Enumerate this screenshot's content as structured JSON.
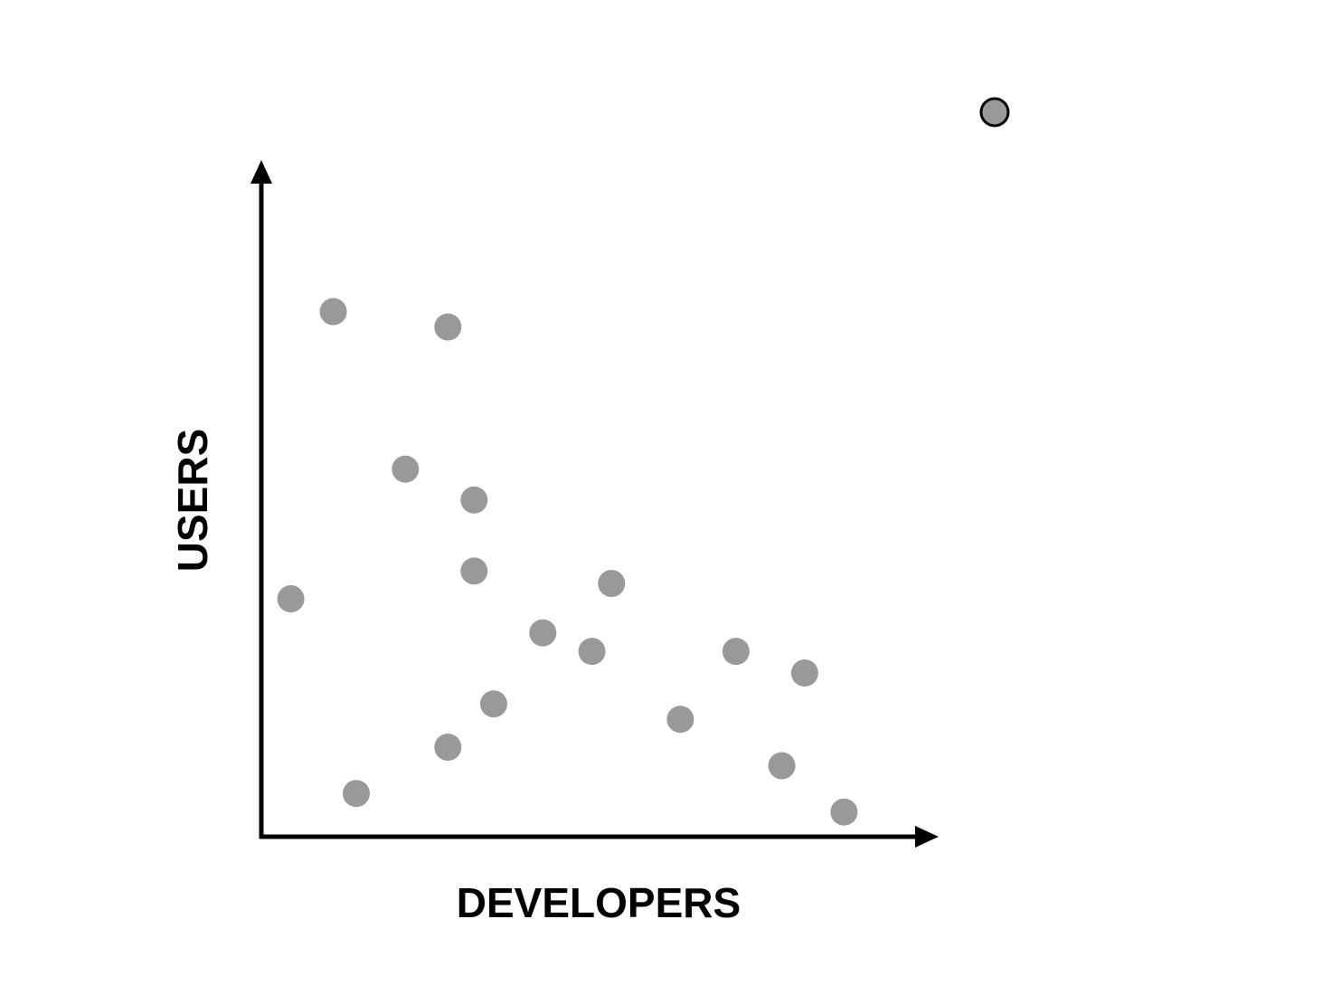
{
  "chart_data": {
    "type": "scatter",
    "title": "",
    "xlabel": "DEVELOPERS",
    "ylabel": "USERS",
    "xlim": [
      0,
      100
    ],
    "ylim": [
      0,
      100
    ],
    "grid": false,
    "legend": "none",
    "axes_have_ticks": false,
    "point_color": "#999999",
    "axis_color": "#000000",
    "series": [
      {
        "points": [
          {
            "x": 4.5,
            "y": 38.5
          },
          {
            "x": 11,
            "y": 85
          },
          {
            "x": 14.5,
            "y": 7
          },
          {
            "x": 22,
            "y": 59.5
          },
          {
            "x": 28.5,
            "y": 14.5
          },
          {
            "x": 28.5,
            "y": 82.5
          },
          {
            "x": 32.5,
            "y": 54.5
          },
          {
            "x": 32.5,
            "y": 43
          },
          {
            "x": 35.5,
            "y": 21.5
          },
          {
            "x": 43,
            "y": 33
          },
          {
            "x": 50.5,
            "y": 30
          },
          {
            "x": 53.5,
            "y": 41
          },
          {
            "x": 64,
            "y": 19
          },
          {
            "x": 72.5,
            "y": 30
          },
          {
            "x": 79.5,
            "y": 11.5
          },
          {
            "x": 83,
            "y": 26.5
          },
          {
            "x": 89,
            "y": 4
          }
        ]
      }
    ],
    "marker": {
      "color": "#999999",
      "outline": "#000000"
    }
  }
}
